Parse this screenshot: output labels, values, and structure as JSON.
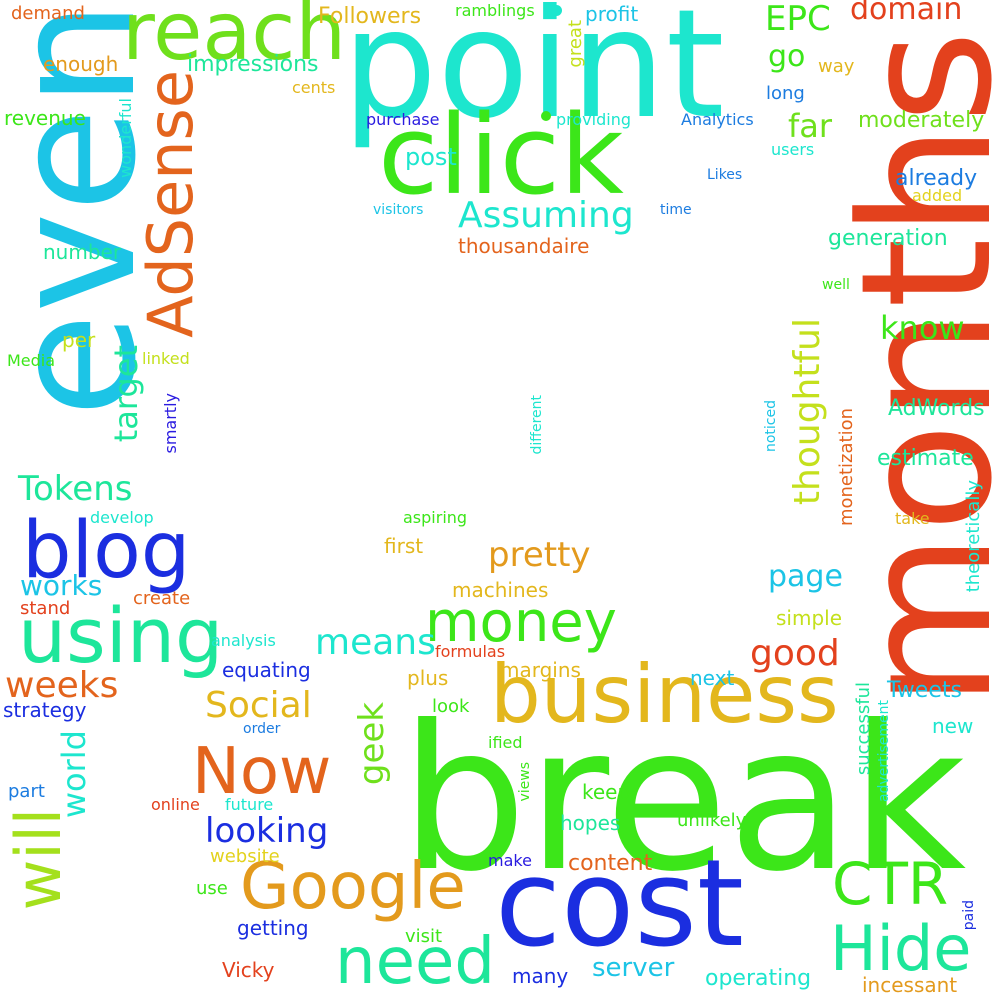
{
  "words": [
    {
      "text": "break",
      "color": "#3ce619"
    },
    {
      "text": "months",
      "color": "#e3411d"
    },
    {
      "text": "even",
      "color": "#1cc4e6"
    },
    {
      "text": "point",
      "color": "#1de6ce"
    },
    {
      "text": "cost",
      "color": "#1b2ee0"
    },
    {
      "text": "click",
      "color": "#3ce619"
    },
    {
      "text": "business",
      "color": "#e3b71d"
    },
    {
      "text": "reach",
      "color": "#6fe01c"
    },
    {
      "text": "AdSense",
      "color": "#e3641d"
    },
    {
      "text": "blog",
      "color": "#1b2ee0"
    },
    {
      "text": "using",
      "color": "#1de69a"
    },
    {
      "text": "Google",
      "color": "#e39a1d"
    },
    {
      "text": "need",
      "color": "#1de69a"
    },
    {
      "text": "Hide",
      "color": "#1de69a"
    },
    {
      "text": "Now",
      "color": "#e3641d"
    },
    {
      "text": "will",
      "color": "#a4e01c"
    },
    {
      "text": "money",
      "color": "#3ce619"
    },
    {
      "text": "CTR",
      "color": "#3ce619"
    },
    {
      "text": "Assuming",
      "color": "#1de6ce"
    },
    {
      "text": "thoughtful",
      "color": "#c4e01c"
    },
    {
      "text": "Tokens",
      "color": "#1de69a"
    },
    {
      "text": "pretty",
      "color": "#e39a1d"
    },
    {
      "text": "target",
      "color": "#1de69a"
    },
    {
      "text": "good",
      "color": "#e3411d"
    },
    {
      "text": "looking",
      "color": "#1b2ee0"
    },
    {
      "text": "Social",
      "color": "#e3b71d"
    },
    {
      "text": "means",
      "color": "#1de6ce"
    },
    {
      "text": "weeks",
      "color": "#e3641d"
    },
    {
      "text": "world",
      "color": "#1de6ce"
    },
    {
      "text": "geek",
      "color": "#6fe01c"
    },
    {
      "text": "domain",
      "color": "#e3411d"
    },
    {
      "text": "EPC",
      "color": "#3ce619"
    },
    {
      "text": "know",
      "color": "#3ce619"
    },
    {
      "text": "page",
      "color": "#1cc4e6"
    },
    {
      "text": "far",
      "color": "#6fe01c"
    },
    {
      "text": "go",
      "color": "#3ce619"
    },
    {
      "text": "works",
      "color": "#1cc4e6"
    },
    {
      "text": "server",
      "color": "#1cc4e6"
    },
    {
      "text": "post",
      "color": "#1de6ce"
    },
    {
      "text": "impressions",
      "color": "#1de69a"
    },
    {
      "text": "Followers",
      "color": "#e3b71d"
    },
    {
      "text": "generation",
      "color": "#1de69a"
    },
    {
      "text": "already",
      "color": "#1c7ce0"
    },
    {
      "text": "moderately",
      "color": "#6fe01c"
    },
    {
      "text": "Tweets",
      "color": "#1cc4e6"
    },
    {
      "text": "AdWords",
      "color": "#1de69a"
    },
    {
      "text": "estimate",
      "color": "#1de69a"
    },
    {
      "text": "enough",
      "color": "#e39a1d"
    },
    {
      "text": "revenue",
      "color": "#3ce619"
    },
    {
      "text": "demand",
      "color": "#e3641d"
    },
    {
      "text": "profit",
      "color": "#1cc4e6"
    },
    {
      "text": "thousandaire",
      "color": "#e3641d"
    },
    {
      "text": "number",
      "color": "#1de69a"
    },
    {
      "text": "simple",
      "color": "#c4e01c"
    },
    {
      "text": "machines",
      "color": "#e3b71d"
    },
    {
      "text": "content",
      "color": "#e3641d"
    },
    {
      "text": "operating",
      "color": "#1de6ce"
    },
    {
      "text": "incessant",
      "color": "#e39a1d"
    },
    {
      "text": "getting",
      "color": "#1b2ee0"
    },
    {
      "text": "keep",
      "color": "#3ce619"
    },
    {
      "text": "hopes",
      "color": "#1de69a"
    },
    {
      "text": "many",
      "color": "#1b2ee0"
    },
    {
      "text": "strategy",
      "color": "#1b2ee0"
    },
    {
      "text": "first",
      "color": "#e3b71d"
    },
    {
      "text": "create",
      "color": "#e3641d"
    },
    {
      "text": "stand",
      "color": "#e3411d"
    },
    {
      "text": "equating",
      "color": "#1b2ee0"
    },
    {
      "text": "margins",
      "color": "#e3b71d"
    },
    {
      "text": "plus",
      "color": "#e3b71d"
    },
    {
      "text": "next",
      "color": "#1cc4e6"
    },
    {
      "text": "new",
      "color": "#1de6ce"
    },
    {
      "text": "look",
      "color": "#3ce619"
    },
    {
      "text": "per",
      "color": "#c4e01c"
    },
    {
      "text": "part",
      "color": "#1c7ce0"
    },
    {
      "text": "successful",
      "color": "#1de69a"
    },
    {
      "text": "monetization",
      "color": "#e3641d"
    },
    {
      "text": "theoretically",
      "color": "#1de6ce"
    },
    {
      "text": "long",
      "color": "#1c7ce0"
    },
    {
      "text": "way",
      "color": "#e3b71d"
    },
    {
      "text": "great",
      "color": "#c4e01c"
    },
    {
      "text": "aspiring",
      "color": "#3ce619"
    },
    {
      "text": "formulas",
      "color": "#e3411d"
    },
    {
      "text": "Analytics",
      "color": "#1c7ce0"
    },
    {
      "text": "providing",
      "color": "#1de6ce"
    },
    {
      "text": "purchase",
      "color": "#2a1be0"
    },
    {
      "text": "Media",
      "color": "#3ce619"
    },
    {
      "text": "linked",
      "color": "#c4e01c"
    },
    {
      "text": "smartly",
      "color": "#2a1be0"
    },
    {
      "text": "develop",
      "color": "#1de6ce"
    },
    {
      "text": "visitors",
      "color": "#1cc4e6"
    },
    {
      "text": "time",
      "color": "#1c7ce0"
    },
    {
      "text": "wonderful",
      "color": "#1de6ce"
    },
    {
      "text": "ramblings",
      "color": "#3ce619"
    },
    {
      "text": "cents",
      "color": "#e3b71d"
    },
    {
      "text": "users",
      "color": "#1de6ce"
    },
    {
      "text": "Likes",
      "color": "#1c7ce0"
    },
    {
      "text": "added",
      "color": "#e3d21d"
    },
    {
      "text": "well",
      "color": "#3ce619"
    },
    {
      "text": "noticed",
      "color": "#1cc4e6"
    },
    {
      "text": "different",
      "color": "#1de6ce"
    },
    {
      "text": "take",
      "color": "#e3b71d"
    },
    {
      "text": "analysis",
      "color": "#1de6ce"
    },
    {
      "text": "order",
      "color": "#1c7ce0"
    },
    {
      "text": "ified",
      "color": "#3ce619"
    },
    {
      "text": "views",
      "color": "#3ce619"
    },
    {
      "text": "online",
      "color": "#e3411d"
    },
    {
      "text": "future",
      "color": "#1de6ce"
    },
    {
      "text": "website",
      "color": "#e3d21d"
    },
    {
      "text": "unlikely",
      "color": "#3ce619"
    },
    {
      "text": "make",
      "color": "#2a1be0"
    },
    {
      "text": "use",
      "color": "#3ce619"
    },
    {
      "text": "visit",
      "color": "#3ce619"
    },
    {
      "text": "Vicky",
      "color": "#e3411d"
    },
    {
      "text": "advertisement",
      "color": "#1de6ce"
    },
    {
      "text": "paid",
      "color": "#1b2ee0"
    }
  ],
  "dots": [
    {
      "name": "green-dot-top",
      "color": "#3ce619"
    },
    {
      "name": "cyan-dot-top",
      "color": "#1de6ce"
    }
  ]
}
